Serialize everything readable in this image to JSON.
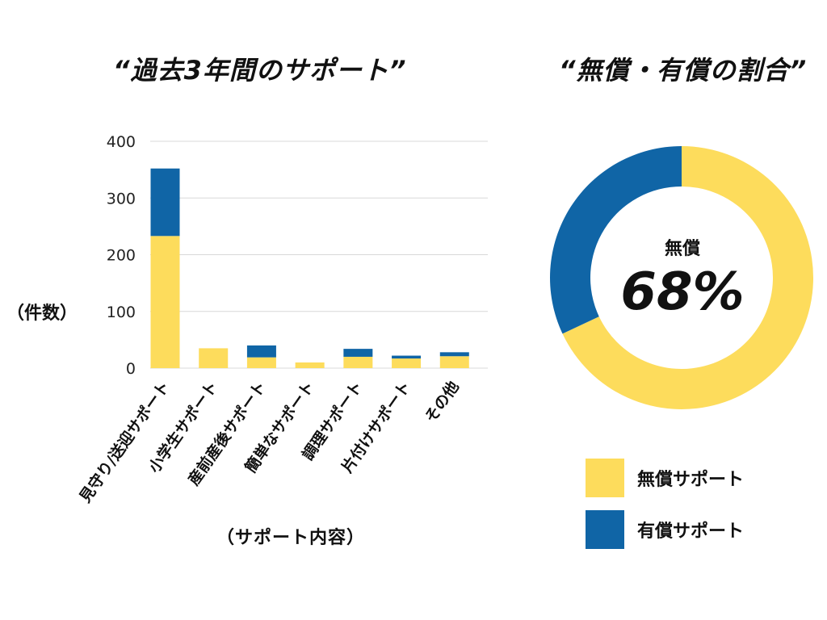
{
  "bar_title": "“過去3年間のサポート”",
  "donut_title": "“無償・有償の割合”",
  "colors": {
    "free": "#FDDC5C",
    "paid": "#1065A6",
    "grid": "#d8d8d8"
  },
  "chart_data": [
    {
      "type": "bar",
      "stacked": true,
      "categories": [
        "見守り/送迎サポート",
        "小学生サポート",
        "産前産後サポート",
        "簡単なサポート",
        "調理サポート",
        "片付けサポート",
        "その他"
      ],
      "series": [
        {
          "name": "無償サポート",
          "values": [
            233,
            35,
            19,
            10,
            20,
            17,
            21
          ]
        },
        {
          "name": "有償サポート",
          "values": [
            119,
            0,
            21,
            0,
            14,
            5,
            7
          ]
        }
      ],
      "yticks": [
        0,
        100,
        200,
        300,
        400
      ],
      "ylim": [
        0,
        400
      ],
      "ylabel": "（件数）",
      "xlabel": "（サポート内容）",
      "grid": true
    },
    {
      "type": "pie",
      "donut": true,
      "labels": [
        "無償サポート",
        "有償サポート"
      ],
      "values": [
        68,
        32
      ],
      "center_label": "無償",
      "center_value": "68%",
      "legend_position": "bottom"
    }
  ]
}
